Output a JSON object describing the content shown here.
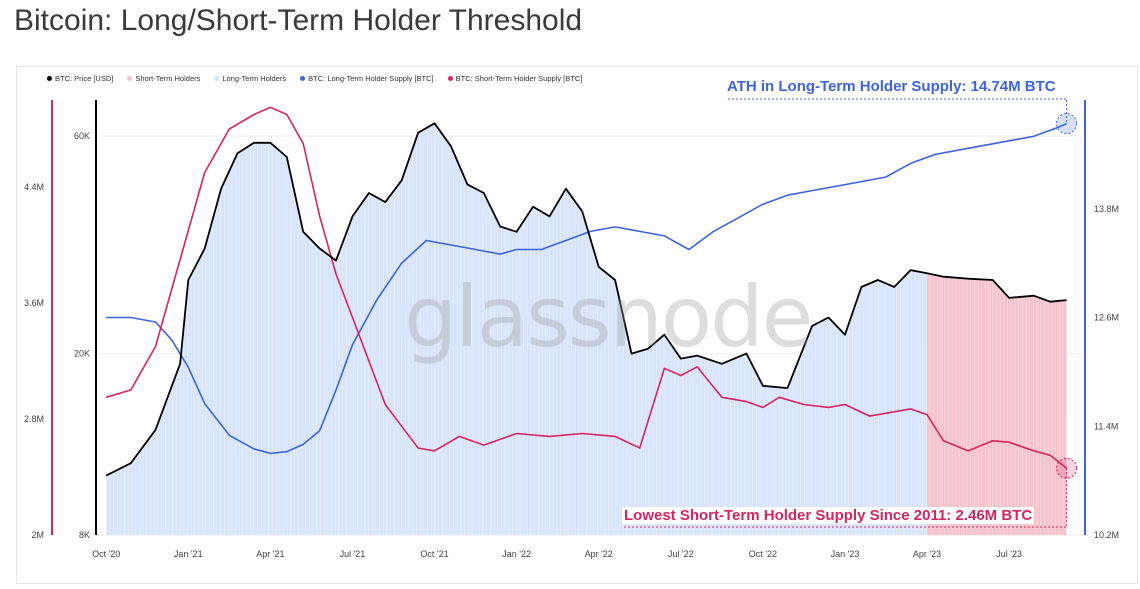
{
  "title": "Bitcoin: Long/Short-Term Holder Threshold",
  "watermark": "glassnode",
  "colors": {
    "price": "#000000",
    "sth_area": "#f6c3cc",
    "lth_area": "#d7e4fb",
    "lth_supply": "#3d63dd",
    "sth_supply": "#d6245f"
  },
  "chart_data": {
    "type": "line",
    "legend": [
      {
        "name": "BTC: Price [USD]",
        "color": "#000000"
      },
      {
        "name": "Short-Term Holders",
        "color": "#f6c3cc"
      },
      {
        "name": "Long-Term Holders",
        "color": "#d7e4fb"
      },
      {
        "name": "BTC: Long-Term Holder Supply [BTC]",
        "color": "#3d63dd"
      },
      {
        "name": "BTC: Short-Term Holder Supply [BTC]",
        "color": "#d6245f"
      }
    ],
    "legend_position": "top-left",
    "x_ticks": [
      "Oct '20",
      "Jan '21",
      "Apr '21",
      "Jul '21",
      "Oct '21",
      "Jan '22",
      "Apr '22",
      "Jul '22",
      "Oct '22",
      "Jan '23",
      "Apr '23",
      "Jul '23"
    ],
    "x_range": [
      -0.1,
      11.9
    ],
    "y_left_sth": {
      "ticks": [
        "2M",
        "2.8M",
        "3.6M",
        "4.4M"
      ],
      "range": [
        2000000,
        5000000
      ]
    },
    "y_left_price": {
      "ticks": [
        "8K",
        "20K",
        "60K"
      ],
      "range": [
        8000,
        72000
      ],
      "scale": "log"
    },
    "y_right_lth": {
      "ticks": [
        "10.2M",
        "11.4M",
        "12.6M",
        "13.8M"
      ],
      "range": [
        10200000,
        15000000
      ]
    },
    "series": [
      {
        "name": "BTC: Price [USD]",
        "unit": "USD",
        "x": [
          0,
          0.3,
          0.6,
          0.9,
          1.0,
          1.2,
          1.4,
          1.6,
          1.8,
          2.0,
          2.2,
          2.4,
          2.6,
          2.8,
          3.0,
          3.2,
          3.4,
          3.6,
          3.8,
          4.0,
          4.2,
          4.4,
          4.6,
          4.8,
          5.0,
          5.2,
          5.4,
          5.6,
          5.8,
          6.0,
          6.2,
          6.4,
          6.6,
          6.8,
          7.0,
          7.2,
          7.5,
          7.8,
          8.0,
          8.3,
          8.6,
          8.8,
          9.0,
          9.2,
          9.4,
          9.6,
          9.8,
          10.0,
          10.2,
          10.5,
          10.8,
          11.0,
          11.3,
          11.5,
          11.7
        ],
        "values": [
          10800,
          11500,
          13600,
          19000,
          29000,
          34000,
          46000,
          55000,
          58000,
          58000,
          54000,
          37000,
          34000,
          32000,
          40000,
          45000,
          43000,
          48000,
          61000,
          64000,
          57000,
          47000,
          45000,
          38000,
          37000,
          42000,
          40000,
          46000,
          41000,
          31000,
          29000,
          20000,
          20500,
          22000,
          19500,
          19800,
          19000,
          20000,
          17000,
          16800,
          23000,
          24000,
          22000,
          28000,
          29000,
          28000,
          30500,
          30000,
          29500,
          29200,
          29000,
          26500,
          26800,
          26000,
          26200
        ]
      },
      {
        "name": "BTC: Short-Term Holder Supply [BTC]",
        "unit": "BTC",
        "x": [
          0,
          0.3,
          0.6,
          0.9,
          1.2,
          1.5,
          1.8,
          2.0,
          2.2,
          2.4,
          2.6,
          2.8,
          3.0,
          3.2,
          3.4,
          3.6,
          3.8,
          4.0,
          4.3,
          4.6,
          5.0,
          5.4,
          5.8,
          6.2,
          6.5,
          6.8,
          7.0,
          7.2,
          7.5,
          7.8,
          8.0,
          8.2,
          8.5,
          8.8,
          9.0,
          9.3,
          9.6,
          9.8,
          10.0,
          10.2,
          10.5,
          10.8,
          11.0,
          11.3,
          11.5,
          11.7
        ],
        "values": [
          2950000,
          3000000,
          3300000,
          3900000,
          4500000,
          4800000,
          4900000,
          4950000,
          4900000,
          4700000,
          4200000,
          3800000,
          3500000,
          3200000,
          2900000,
          2750000,
          2600000,
          2580000,
          2680000,
          2620000,
          2700000,
          2680000,
          2700000,
          2680000,
          2600000,
          3150000,
          3100000,
          3160000,
          2950000,
          2920000,
          2880000,
          2950000,
          2900000,
          2880000,
          2900000,
          2820000,
          2850000,
          2870000,
          2830000,
          2650000,
          2580000,
          2650000,
          2640000,
          2580000,
          2550000,
          2460000
        ]
      },
      {
        "name": "BTC: Long-Term Holder Supply [BTC]",
        "unit": "BTC",
        "x": [
          0,
          0.3,
          0.6,
          0.8,
          1.0,
          1.2,
          1.5,
          1.8,
          2.0,
          2.2,
          2.4,
          2.6,
          2.8,
          3.0,
          3.3,
          3.6,
          3.9,
          4.2,
          4.5,
          4.8,
          5.0,
          5.3,
          5.6,
          5.9,
          6.2,
          6.5,
          6.8,
          7.1,
          7.4,
          7.7,
          8.0,
          8.3,
          8.6,
          8.9,
          9.2,
          9.5,
          9.8,
          10.1,
          10.4,
          10.7,
          11.0,
          11.3,
          11.6,
          11.7
        ],
        "values": [
          12600000,
          12600000,
          12550000,
          12350000,
          12050000,
          11650000,
          11300000,
          11150000,
          11100000,
          11120000,
          11200000,
          11350000,
          11800000,
          12300000,
          12800000,
          13200000,
          13450000,
          13400000,
          13350000,
          13300000,
          13350000,
          13350000,
          13450000,
          13550000,
          13600000,
          13550000,
          13500000,
          13350000,
          13550000,
          13700000,
          13850000,
          13950000,
          14000000,
          14050000,
          14100000,
          14150000,
          14300000,
          14400000,
          14450000,
          14500000,
          14550000,
          14600000,
          14700000,
          14740000
        ]
      }
    ],
    "short_term_region_start": 10.0,
    "annotations": [
      {
        "text": "ATH in Long-Term Holder Supply: 14.74M BTC",
        "series": "BTC: Long-Term Holder Supply [BTC]"
      },
      {
        "text": "Lowest Short-Term Holder Supply Since 2011: 2.46M BTC",
        "series": "BTC: Short-Term Holder Supply [BTC]"
      }
    ]
  }
}
